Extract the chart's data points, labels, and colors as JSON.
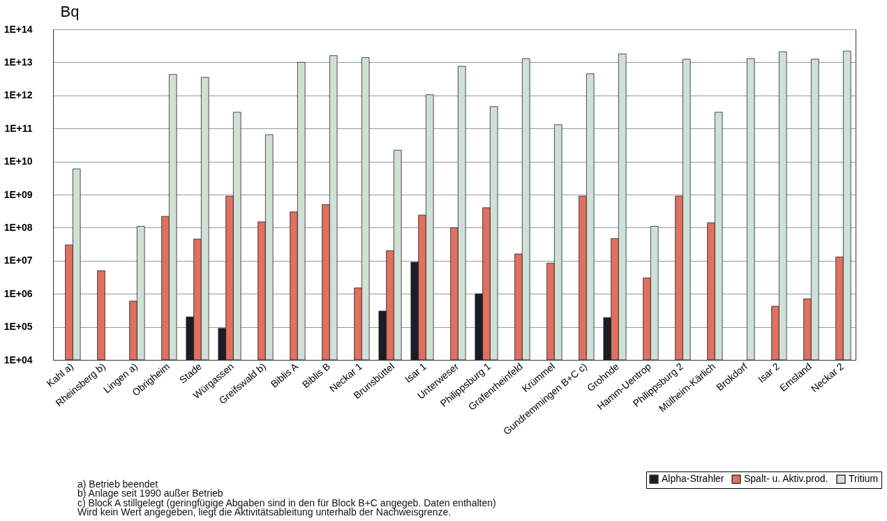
{
  "chart_data": {
    "type": "bar",
    "ylabel": "Bq",
    "log": "y",
    "ylim": [
      10000.0,
      100000000000000.0
    ],
    "yticks": [
      {
        "value": 10000.0,
        "label": "1E+04"
      },
      {
        "value": 100000.0,
        "label": "1E+05"
      },
      {
        "value": 1000000.0,
        "label": "1E+06"
      },
      {
        "value": 10000000.0,
        "label": "1E+07"
      },
      {
        "value": 100000000.0,
        "label": "1E+08"
      },
      {
        "value": 1000000000.0,
        "label": "1E+09"
      },
      {
        "value": 10000000000.0,
        "label": "1E+10"
      },
      {
        "value": 100000000000.0,
        "label": "1E+11"
      },
      {
        "value": 1000000000000.0,
        "label": "1E+12"
      },
      {
        "value": 10000000000000.0,
        "label": "1E+13"
      },
      {
        "value": 100000000000000.0,
        "label": "1E+14"
      }
    ],
    "grid": "y",
    "legend": "bottom right",
    "categories": [
      "Kahl a)",
      "Rheinsberg b)",
      "Lingen a)",
      "Obrigheim",
      "Stade",
      "Würgassen",
      "Greifswald b)",
      "Biblis A",
      "Biblis B",
      "Neckar 1",
      "Brunsbüttel",
      "Isar 1",
      "Unterweser",
      "Philippsburg 1",
      "Grafenrheinfeld",
      "Krümmel",
      "Gundremmingen B+C c)",
      "Grohnde",
      "Hamm-Uentrop",
      "Philippsburg 2",
      "Mülheim-Kärlich",
      "Brokdorf",
      "Isar 2",
      "Emsland",
      "Neckar 2"
    ],
    "series": [
      {
        "name": "Alpha-Strahler",
        "color": "#1c1c28",
        "values": [
          null,
          null,
          null,
          null,
          200000.0,
          90000.0,
          null,
          null,
          null,
          null,
          300000.0,
          9000000.0,
          null,
          1000000.0,
          null,
          null,
          null,
          190000.0,
          null,
          null,
          null,
          null,
          null,
          null,
          null
        ]
      },
      {
        "name": "Spalt- u. Aktiv.prod.",
        "color": "#e0705f",
        "values": [
          30000000.0,
          5000000.0,
          600000.0,
          220000000.0,
          45000000.0,
          900000000.0,
          150000000.0,
          300000000.0,
          500000000.0,
          1500000.0,
          20000000.0,
          240000000.0,
          100000000.0,
          400000000.0,
          16000000.0,
          8500000.0,
          900000000.0,
          47000000.0,
          3000000.0,
          900000000.0,
          140000000.0,
          null,
          420000.0,
          700000.0,
          13000000.0
        ]
      },
      {
        "name": "Tritium",
        "color": "#cfe0d6",
        "values": [
          6000000000.0,
          null,
          110000000.0,
          4300000000000.0,
          3500000000000.0,
          310000000000.0,
          65000000000.0,
          10000000000000.0,
          16000000000000.0,
          14000000000000.0,
          22000000000.0,
          1050000000000.0,
          7600000000000.0,
          460000000000.0,
          13000000000000.0,
          130000000000.0,
          4500000000000.0,
          18000000000000.0,
          110000000.0,
          12500000000000.0,
          310000000000.0,
          13000000000000.0,
          21000000000000.0,
          12500000000000.0,
          22000000000000.0
        ]
      }
    ],
    "annotations": [
      "a) Betrieb beendet",
      "b) Anlage seit 1990 außer Betrieb",
      "c) Block A stillgelegt (geringfügige Abgaben sind in den für Block B+C angegeb. Daten enthalten)",
      "Wird kein Wert angegeben, liegt die Aktivitätsableitung unterhalb der Nachweisgrenze."
    ]
  }
}
